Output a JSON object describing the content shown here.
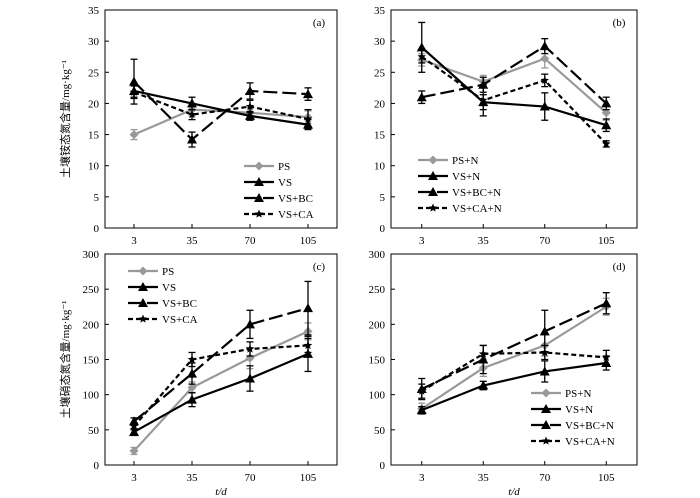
{
  "xlabel": "t/d",
  "chart_data": [
    {
      "id": "a",
      "type": "line",
      "panel_label": "(a)",
      "ylabel": "土壤铵态氮含量/mg·kg⁻¹",
      "x": [
        3,
        35,
        70,
        105
      ],
      "x_tick_labels": [
        "3",
        "35",
        "70",
        "105"
      ],
      "ylim": [
        0,
        35
      ],
      "y_ticks": [
        0,
        5,
        10,
        15,
        20,
        25,
        30,
        35
      ],
      "legend_position": "bottom-right",
      "series": [
        {
          "name": "PS",
          "values": [
            15.0,
            19.0,
            18.5,
            17.8
          ],
          "errors": [
            0.8,
            1.0,
            0.8,
            1.0
          ],
          "color": "#999999",
          "dash": "solid",
          "marker": "diamond"
        },
        {
          "name": "VS",
          "values": [
            22.0,
            20.0,
            18.0,
            16.6
          ],
          "errors": [
            1.0,
            1.0,
            0.7,
            0.8
          ],
          "color": "#000000",
          "dash": "solid",
          "marker": "triangle"
        },
        {
          "name": "VS+BC",
          "values": [
            23.5,
            14.2,
            22.0,
            21.5
          ],
          "errors": [
            3.6,
            1.2,
            1.3,
            1.0
          ],
          "color": "#000000",
          "dash": "long",
          "marker": "triangle"
        },
        {
          "name": "VS+CA",
          "values": [
            21.8,
            18.2,
            19.5,
            17.5
          ],
          "errors": [
            1.0,
            0.8,
            1.0,
            1.5
          ],
          "color": "#000000",
          "dash": "short",
          "marker": "star"
        }
      ]
    },
    {
      "id": "b",
      "type": "line",
      "panel_label": "(b)",
      "ylabel": "",
      "x": [
        3,
        35,
        70,
        105
      ],
      "x_tick_labels": [
        "3",
        "35",
        "70",
        "105"
      ],
      "ylim": [
        0,
        35
      ],
      "y_ticks": [
        0,
        5,
        10,
        15,
        20,
        25,
        30,
        35
      ],
      "legend_position": "bottom-left",
      "series": [
        {
          "name": "PS+N",
          "values": [
            27.0,
            23.5,
            27.2,
            18.5
          ],
          "errors": [
            1.0,
            1.0,
            1.5,
            1.2
          ],
          "color": "#999999",
          "dash": "solid",
          "marker": "diamond"
        },
        {
          "name": "VS+N",
          "values": [
            29.0,
            20.2,
            19.5,
            16.5
          ],
          "errors": [
            4.0,
            1.2,
            2.2,
            1.0
          ],
          "color": "#000000",
          "dash": "solid",
          "marker": "triangle"
        },
        {
          "name": "VS+BC+N",
          "values": [
            21.0,
            23.0,
            29.2,
            20.0
          ],
          "errors": [
            1.0,
            1.2,
            1.2,
            1.0
          ],
          "color": "#000000",
          "dash": "long",
          "marker": "triangle"
        },
        {
          "name": "VS+CA+N",
          "values": [
            27.5,
            20.5,
            23.7,
            13.5
          ],
          "errors": [
            1.0,
            2.5,
            1.0,
            0.5
          ],
          "color": "#000000",
          "dash": "short",
          "marker": "star"
        }
      ]
    },
    {
      "id": "c",
      "type": "line",
      "panel_label": "(c)",
      "ylabel": "土壤硝态氮含量/mg·kg⁻¹",
      "x": [
        3,
        35,
        70,
        105
      ],
      "x_tick_labels": [
        "3",
        "35",
        "70",
        "105"
      ],
      "ylim": [
        0,
        300
      ],
      "y_ticks": [
        0,
        50,
        100,
        150,
        200,
        250,
        300
      ],
      "legend_position": "top-left",
      "series": [
        {
          "name": "PS",
          "values": [
            20,
            110,
            152,
            190
          ],
          "errors": [
            5,
            8,
            15,
            12
          ],
          "color": "#999999",
          "dash": "solid",
          "marker": "diamond"
        },
        {
          "name": "VS",
          "values": [
            47,
            93,
            123,
            158
          ],
          "errors": [
            5,
            10,
            18,
            25
          ],
          "color": "#000000",
          "dash": "solid",
          "marker": "triangle"
        },
        {
          "name": "VS+BC",
          "values": [
            62,
            130,
            200,
            223
          ],
          "errors": [
            5,
            15,
            20,
            38
          ],
          "color": "#000000",
          "dash": "long",
          "marker": "triangle"
        },
        {
          "name": "VS+CA",
          "values": [
            55,
            150,
            165,
            170
          ],
          "errors": [
            5,
            10,
            10,
            10
          ],
          "color": "#000000",
          "dash": "short",
          "marker": "star"
        }
      ]
    },
    {
      "id": "d",
      "type": "line",
      "panel_label": "(d)",
      "ylabel": "",
      "x": [
        3,
        35,
        70,
        105
      ],
      "x_tick_labels": [
        "3",
        "35",
        "70",
        "105"
      ],
      "ylim": [
        0,
        300
      ],
      "y_ticks": [
        0,
        50,
        100,
        150,
        200,
        250,
        300
      ],
      "legend_position": "bottom-right",
      "series": [
        {
          "name": "PS+N",
          "values": [
            80,
            138,
            170,
            225
          ],
          "errors": [
            8,
            12,
            15,
            12
          ],
          "color": "#999999",
          "dash": "solid",
          "marker": "diamond"
        },
        {
          "name": "VS+N",
          "values": [
            78,
            113,
            133,
            145
          ],
          "errors": [
            5,
            6,
            15,
            10
          ],
          "color": "#000000",
          "dash": "solid",
          "marker": "triangle"
        },
        {
          "name": "VS+BC+N",
          "values": [
            108,
            150,
            190,
            230
          ],
          "errors": [
            15,
            20,
            30,
            15
          ],
          "color": "#000000",
          "dash": "long",
          "marker": "triangle"
        },
        {
          "name": "VS+CA+N",
          "values": [
            105,
            158,
            160,
            153
          ],
          "errors": [
            10,
            12,
            10,
            10
          ],
          "color": "#000000",
          "dash": "short",
          "marker": "star"
        }
      ]
    }
  ]
}
